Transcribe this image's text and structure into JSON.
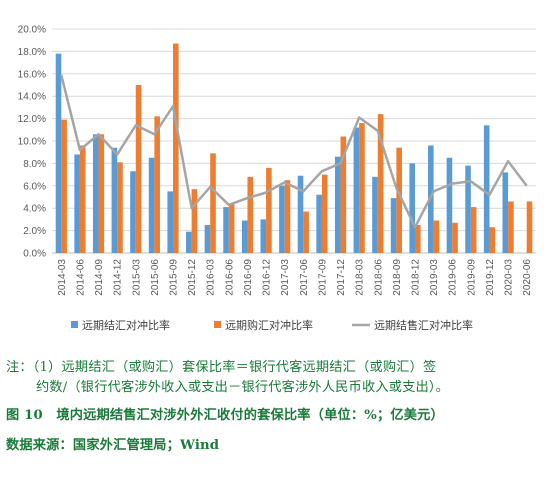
{
  "chart_data": {
    "type": "bar+line",
    "categories": [
      "2014-03",
      "2014-06",
      "2014-09",
      "2014-12",
      "2015-03",
      "2015-06",
      "2015-09",
      "2015-12",
      "2016-03",
      "2016-06",
      "2016-09",
      "2016-12",
      "2017-03",
      "2017-06",
      "2017-09",
      "2017-12",
      "2018-03",
      "2018-06",
      "2018-09",
      "2018-12",
      "2019-03",
      "2019-06",
      "2019-09",
      "2019-12",
      "2020-03",
      "2020-06"
    ],
    "x_tick_labels": [
      "2014-03",
      "2014-09",
      "2015-03",
      "2015-09",
      "2016-03",
      "2016-09",
      "2017-03",
      "2017-09",
      "2018-03",
      "2018-09",
      "2019-03",
      "2019-09",
      "2020-03",
      "2014-06",
      "2014-12",
      "2015-06",
      "2015-12",
      "2016-06",
      "2016-12",
      "2017-06",
      "2017-12",
      "2018-06",
      "2018-12",
      "2019-06",
      "2019-12",
      "2020-06"
    ],
    "y_tick_labels": [
      "0.0%",
      "2.0%",
      "4.0%",
      "6.0%",
      "8.0%",
      "10.0%",
      "12.0%",
      "14.0%",
      "16.0%",
      "18.0%",
      "20.0%"
    ],
    "ylim": [
      0,
      20
    ],
    "y_unit": "%",
    "grid": true,
    "legend_position": "bottom",
    "series": [
      {
        "name": "远期结汇对冲比率",
        "kind": "bar",
        "color": "#5b9bd5",
        "values": [
          17.8,
          8.8,
          10.6,
          9.4,
          7.3,
          8.5,
          5.5,
          1.9,
          2.5,
          4.1,
          2.9,
          3.0,
          6.0,
          6.9,
          5.2,
          8.6,
          11.2,
          6.8,
          4.9,
          8.0,
          9.6,
          8.5,
          7.8,
          11.4,
          7.2,
          0
        ]
      },
      {
        "name": "远期购汇对冲比率",
        "kind": "bar",
        "color": "#ed7d31",
        "values": [
          11.9,
          9.6,
          10.6,
          8.1,
          15.0,
          12.2,
          18.7,
          5.7,
          8.9,
          4.4,
          6.8,
          7.6,
          6.5,
          3.7,
          7.0,
          10.4,
          11.6,
          12.4,
          9.4,
          2.5,
          2.9,
          2.7,
          4.1,
          2.3,
          4.6,
          4.6
        ]
      },
      {
        "name": "远期结售汇对冲比率",
        "kind": "line",
        "color": "#a5a5a5",
        "values": [
          15.9,
          9.2,
          10.6,
          8.8,
          11.4,
          10.6,
          13.1,
          4.0,
          5.9,
          4.3,
          4.9,
          5.4,
          6.3,
          5.5,
          7.3,
          8.0,
          12.1,
          10.9,
          5.8,
          2.3,
          5.5,
          6.2,
          6.4,
          5.2,
          8.2,
          6.0
        ]
      }
    ]
  },
  "captions": {
    "note_line1": "注：（1）远期结汇（或购汇）套保比率＝银行代客远期结汇（或购汇）签",
    "note_line2": "约数/（银行代客涉外收入或支出－银行代客涉外人民币收入或支出）。",
    "figure_title": "图 10　境内远期结售汇对涉外外汇收付的套保比率（单位：%；亿美元）",
    "source": "数据来源：国家外汇管理局；Wind"
  }
}
